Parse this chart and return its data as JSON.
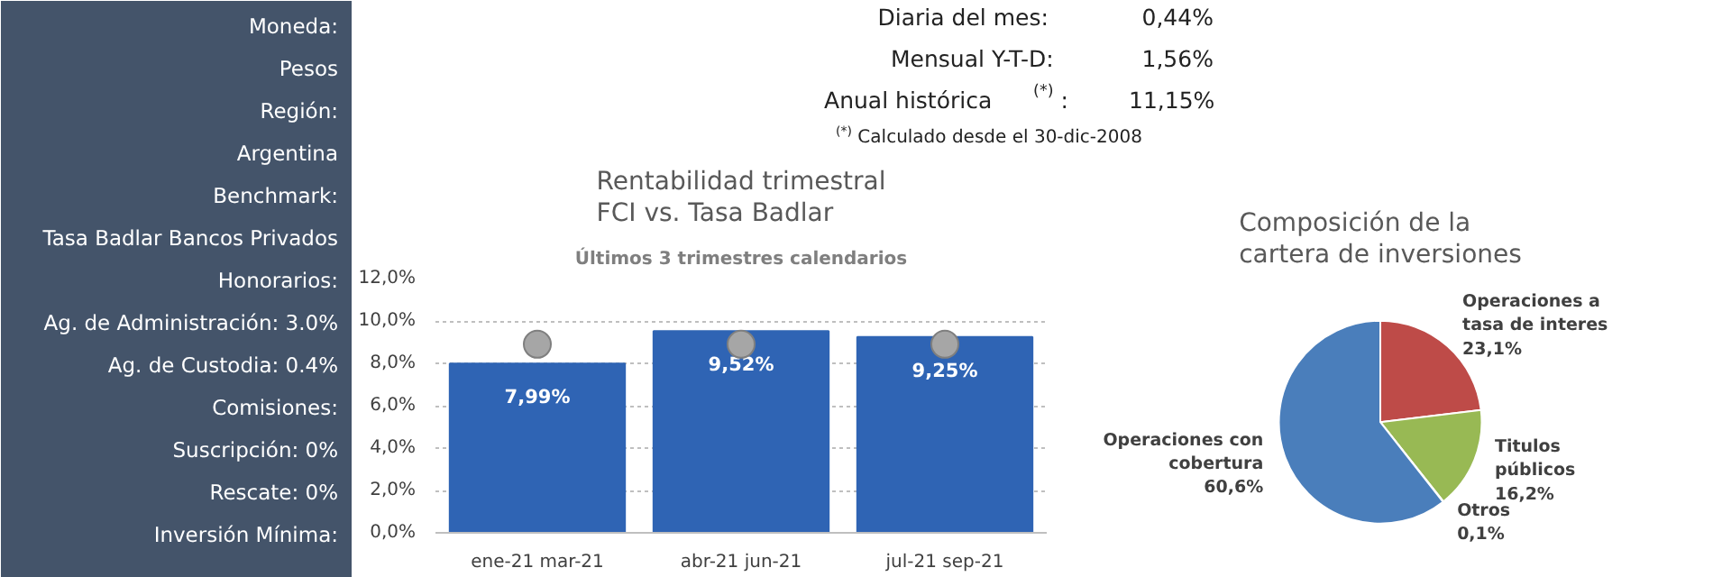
{
  "chart_data": [
    {
      "type": "other",
      "annotations": [
        "Moneda:",
        "Pesos",
        "Región:",
        "Argentina",
        "Benchmark:",
        "Tasa Badlar Bancos Privados",
        "Honorarios:",
        "Ag. de Administración: 3.0%",
        "Ag. de Custodia: 0.4%",
        "Comisiones:",
        "Suscripción: 0%",
        "Rescate: 0%",
        "Inversión Mínima:"
      ]
    },
    {
      "type": "other",
      "annotations": [
        "Diaria del mes:",
        "0,44%",
        "Mensual Y-T-D:",
        "1,56%",
        "Anual histórica $^{(*)}$:",
        "11,15%",
        "$^{(*)}$ Calculado desde el 30-dic-2008"
      ]
    },
    {
      "type": "bar",
      "title": "Rentabilidad trimestral FCI vs. Tasa Badlar",
      "subtitle": "Últimos 3 trimestres calendarios",
      "categories": [
        "ene-21 mar-21",
        "abr-21 jun-21",
        "jul-21 sep-21"
      ],
      "series": [
        {
          "type": "bar",
          "color": "#2f64b4",
          "values": [
            7.99,
            9.52,
            9.25
          ],
          "value_labels": [
            "7,99%",
            "9,52%",
            "9,25%"
          ]
        },
        {
          "type": "scatter",
          "color": "#a6a6a6",
          "values": [
            8.9,
            8.9,
            8.9
          ]
        }
      ],
      "ylim": [
        0,
        12
      ],
      "yticks": [
        {
          "value": 0,
          "label": "0,0%"
        },
        {
          "value": 2,
          "label": "2,0%"
        },
        {
          "value": 4,
          "label": "4,0%"
        },
        {
          "value": 6,
          "label": "6,0%"
        },
        {
          "value": 8,
          "label": "8,0%"
        },
        {
          "value": 10,
          "label": "10,0%"
        },
        {
          "value": 12,
          "label": "12,0%"
        }
      ],
      "grid": "y",
      "marker": "circle"
    },
    {
      "type": "pie",
      "title": "Composición de la cartera de inversiones",
      "categories": [
        "Operaciones a tasa de interes",
        "Titulos públicos",
        "Otros",
        "Operaciones con cobertura"
      ],
      "values": [
        23.1,
        16.2,
        0.1,
        60.6
      ],
      "colors": [
        "#be4b48",
        "#98b954",
        "#7d5fa0",
        "#4a7ebb"
      ],
      "value_labels": [
        "23,1%",
        "16,2%",
        "0,1%",
        "60,6%"
      ]
    }
  ]
}
